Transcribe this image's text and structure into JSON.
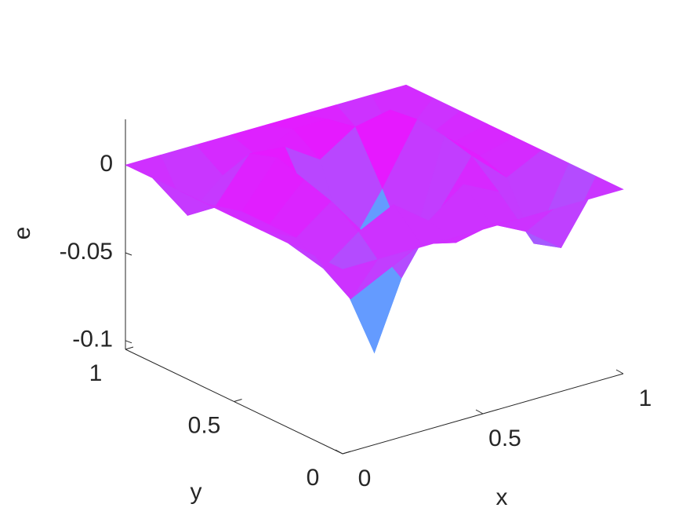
{
  "chart_data": {
    "type": "surface",
    "x": [
      0,
      0.125,
      0.25,
      0.375,
      0.5,
      0.625,
      0.75,
      0.875,
      1
    ],
    "y": [
      0,
      0.125,
      0.25,
      0.375,
      0.5,
      0.625,
      0.75,
      0.875,
      1
    ],
    "z": [
      [
        0,
        0,
        0,
        0,
        0,
        0,
        0,
        0,
        0
      ],
      [
        0,
        -0.03,
        -0.02,
        -0.01,
        -0.015,
        -0.01,
        -0.02,
        -0.035,
        0
      ],
      [
        0,
        -0.02,
        -0.005,
        0.005,
        -0.01,
        0.005,
        -0.005,
        -0.04,
        0
      ],
      [
        0,
        -0.01,
        0.005,
        -0.02,
        -0.05,
        -0.02,
        0.008,
        -0.01,
        0
      ],
      [
        0,
        -0.01,
        0.01,
        -0.05,
        -0.1,
        -0.05,
        0.012,
        -0.005,
        0
      ],
      [
        0,
        -0.01,
        0.015,
        -0.02,
        -0.05,
        -0.02,
        0.014,
        -0.005,
        0
      ],
      [
        0,
        -0.015,
        0.01,
        0.008,
        -0.005,
        0.008,
        0.012,
        -0.01,
        0
      ],
      [
        0,
        -0.027,
        -0.01,
        -0.005,
        0.005,
        0.005,
        -0.01,
        -0.02,
        0
      ],
      [
        0,
        0,
        0,
        0,
        0,
        0,
        0,
        0,
        0
      ]
    ],
    "xlabel": "x",
    "ylabel": "y",
    "zlabel": "e",
    "xlim": [
      0,
      1
    ],
    "ylim": [
      0,
      1
    ],
    "zlim": [
      -0.105,
      0.026
    ],
    "xticks": [
      0,
      0.5,
      1
    ],
    "yticks": [
      0,
      0.5,
      1
    ],
    "zticks": [
      -0.1,
      -0.05,
      0
    ],
    "colormap": "cool"
  }
}
